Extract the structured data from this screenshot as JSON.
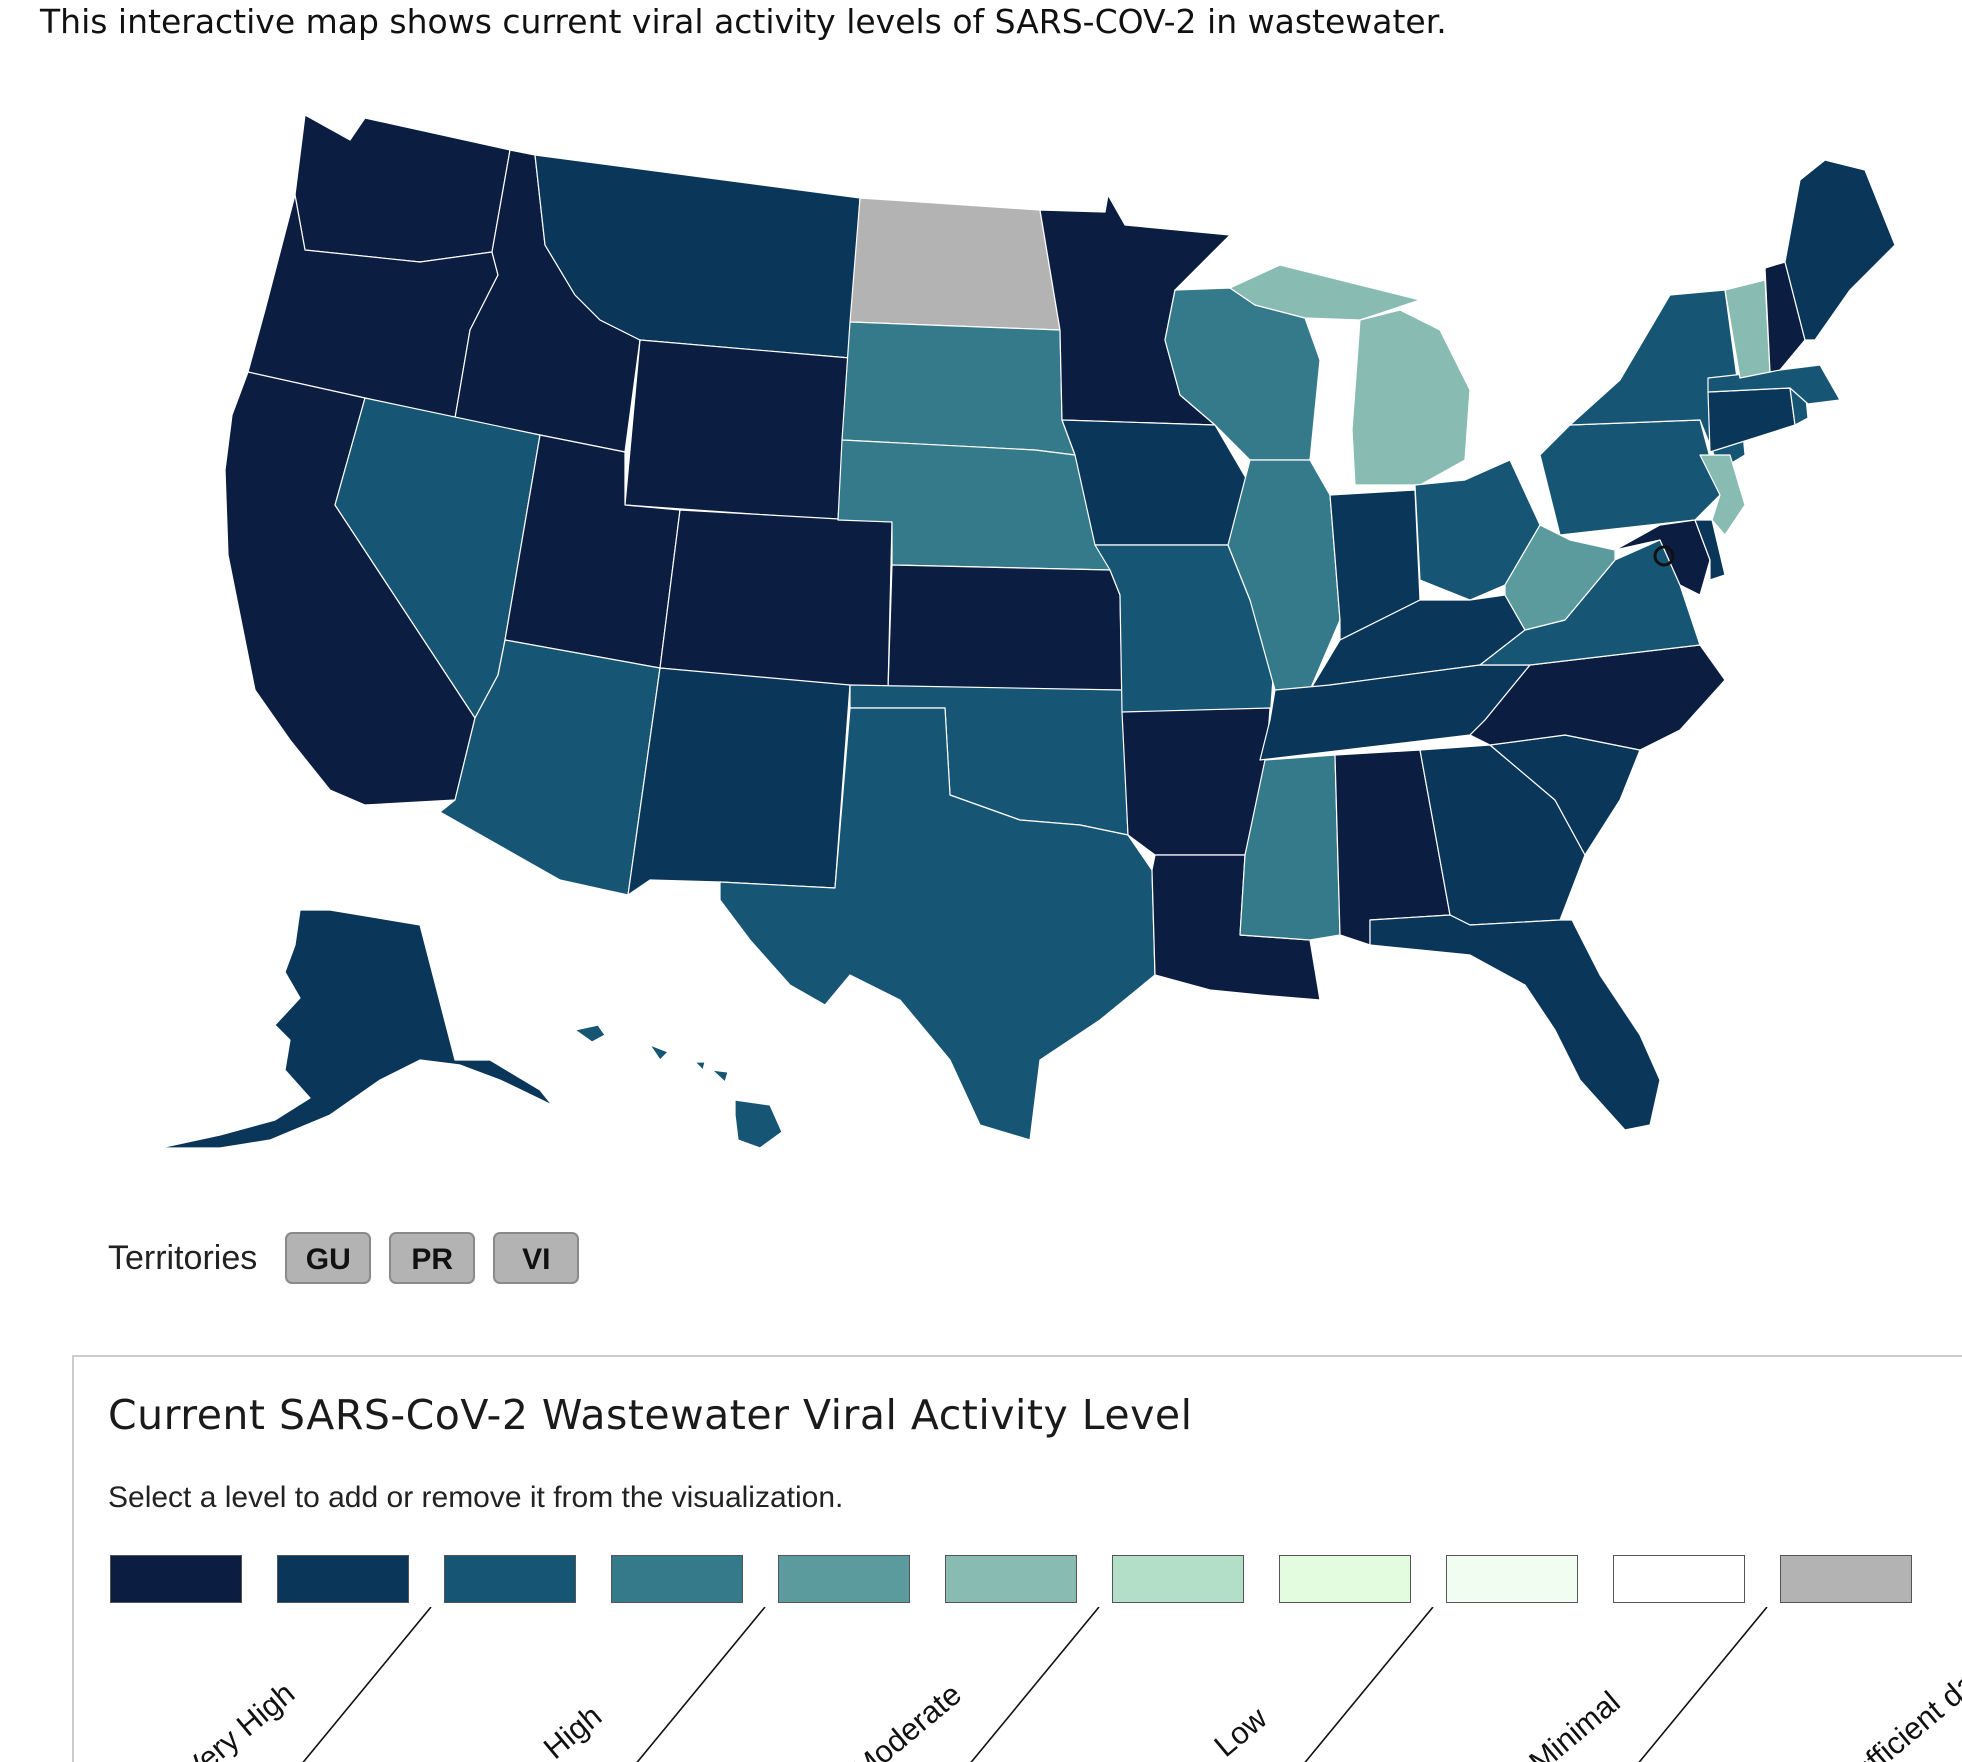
{
  "intro_text": "This interactive map shows current viral activity levels of SARS-COV-2 in wastewater.",
  "levels": [
    {
      "key": "vh1",
      "color": "#0b1d40"
    },
    {
      "key": "vh2",
      "color": "#0a3659"
    },
    {
      "key": "h1",
      "color": "#165573"
    },
    {
      "key": "h2",
      "color": "#357a8b"
    },
    {
      "key": "m1",
      "color": "#5b9b9e"
    },
    {
      "key": "m2",
      "color": "#88bbb2"
    },
    {
      "key": "l1",
      "color": "#b3dec8"
    },
    {
      "key": "l2",
      "color": "#e3fcdf"
    },
    {
      "key": "mn1",
      "color": "#f1fdf0"
    },
    {
      "key": "mn2",
      "color": "#ffffff"
    },
    {
      "key": "na",
      "color": "#b3b3b3"
    }
  ],
  "legend": {
    "title": "Current SARS-CoV-2 Wastewater Viral Activity Level",
    "subtitle": "Select a level to add or remove it from the visualization.",
    "groups": [
      {
        "label": "Very High"
      },
      {
        "label": "High"
      },
      {
        "label": "Moderate"
      },
      {
        "label": "Low"
      },
      {
        "label": "Minimal"
      },
      {
        "label": "Insufficient data"
      }
    ]
  },
  "territories": {
    "label": "Territories",
    "items": [
      "GU",
      "PR",
      "VI"
    ],
    "color": "#b3b3b3"
  },
  "states": [
    {
      "id": "WA",
      "level": 0
    },
    {
      "id": "OR",
      "level": 0
    },
    {
      "id": "CA",
      "level": 0
    },
    {
      "id": "ID",
      "level": 0
    },
    {
      "id": "NV",
      "level": 2
    },
    {
      "id": "MT",
      "level": 1
    },
    {
      "id": "WY",
      "level": 0
    },
    {
      "id": "UT",
      "level": 0
    },
    {
      "id": "AZ",
      "level": 2
    },
    {
      "id": "CO",
      "level": 0
    },
    {
      "id": "NM",
      "level": 1
    },
    {
      "id": "ND",
      "level": 10
    },
    {
      "id": "SD",
      "level": 3
    },
    {
      "id": "NE",
      "level": 3
    },
    {
      "id": "KS",
      "level": 0
    },
    {
      "id": "OK",
      "level": 2
    },
    {
      "id": "TX",
      "level": 2
    },
    {
      "id": "MN",
      "level": 0
    },
    {
      "id": "IA",
      "level": 1
    },
    {
      "id": "MO",
      "level": 2
    },
    {
      "id": "AR",
      "level": 0
    },
    {
      "id": "LA",
      "level": 0
    },
    {
      "id": "WI",
      "level": 3
    },
    {
      "id": "IL",
      "level": 3
    },
    {
      "id": "MI",
      "level": 5
    },
    {
      "id": "IN",
      "level": 1
    },
    {
      "id": "OH",
      "level": 2
    },
    {
      "id": "KY",
      "level": 1
    },
    {
      "id": "TN",
      "level": 1
    },
    {
      "id": "MS",
      "level": 3
    },
    {
      "id": "AL",
      "level": 0
    },
    {
      "id": "GA",
      "level": 1
    },
    {
      "id": "FL",
      "level": 1
    },
    {
      "id": "SC",
      "level": 1
    },
    {
      "id": "NC",
      "level": 0
    },
    {
      "id": "VA",
      "level": 2
    },
    {
      "id": "WV",
      "level": 4
    },
    {
      "id": "PA",
      "level": 2
    },
    {
      "id": "NY",
      "level": 2
    },
    {
      "id": "MD",
      "level": 0
    },
    {
      "id": "DE",
      "level": 1
    },
    {
      "id": "NJ",
      "level": 5
    },
    {
      "id": "CT",
      "level": 1
    },
    {
      "id": "RI",
      "level": 2
    },
    {
      "id": "MA",
      "level": 2
    },
    {
      "id": "VT",
      "level": 5
    },
    {
      "id": "NH",
      "level": 0
    },
    {
      "id": "ME",
      "level": 1
    },
    {
      "id": "AK",
      "level": 1
    },
    {
      "id": "HI",
      "level": 2
    }
  ]
}
